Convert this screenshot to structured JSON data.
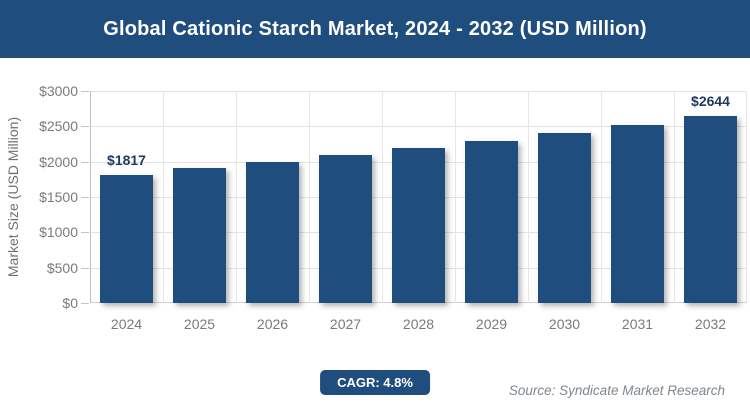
{
  "header": {
    "title": "Global Cationic Starch Market, 2024 - 2032 (USD Million)"
  },
  "chart_data": {
    "type": "bar",
    "title": "Global Cationic Starch Market, 2024 - 2032 (USD Million)",
    "categories": [
      "2024",
      "2025",
      "2026",
      "2027",
      "2028",
      "2029",
      "2030",
      "2031",
      "2032"
    ],
    "values": [
      1817,
      1904,
      1996,
      2091,
      2192,
      2297,
      2407,
      2523,
      2644
    ],
    "bar_labels": [
      "$1817",
      "",
      "",
      "",
      "",
      "",
      "",
      "",
      "$2644"
    ],
    "xlabel": "",
    "ylabel": "Market Size (USD Million)",
    "ylim": [
      0,
      3000
    ],
    "ytick_labels": [
      "$3000",
      "$2500",
      "$2000",
      "$1500",
      "$1000",
      "$500",
      "$0"
    ],
    "grid": true,
    "legend": false,
    "colors": {
      "bar": "#1F4E7E",
      "banner": "#1F4E7E",
      "data_label": "#1E3A5F",
      "axis_text": "#7A7A7A",
      "source_text": "#7F878E"
    }
  },
  "footer": {
    "cagr_label": "CAGR: 4.8%",
    "source": "Source: Syndicate Market Research"
  }
}
